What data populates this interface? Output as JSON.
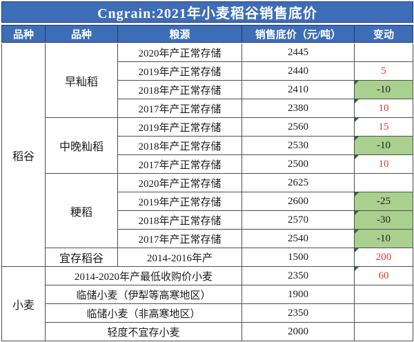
{
  "title": "Cngrain:2021年小麦稻谷销售底价",
  "columns": [
    "品种",
    "品种",
    "粮源",
    "销售底价（元/吨）",
    "变动"
  ],
  "groups": {
    "rice": "稻谷",
    "wheat": "小麦",
    "early_indica": "早籼稻",
    "mid_late_indica": "中晚籼稻",
    "japonica": "粳稻",
    "storable_rice": "宜存稻谷"
  },
  "rows": [
    {
      "source": "2020年产正常存储",
      "price": "2445",
      "change": ""
    },
    {
      "source": "2019年产正常存储",
      "price": "2440",
      "change": "5"
    },
    {
      "source": "2018年产正常存储",
      "price": "2410",
      "change": "-10"
    },
    {
      "source": "2017年产正常存储",
      "price": "2380",
      "change": "10"
    },
    {
      "source": "2019年产正常存储",
      "price": "2560",
      "change": "15"
    },
    {
      "source": "2018年产正常存储",
      "price": "2530",
      "change": "-10"
    },
    {
      "source": "2017年产正常存储",
      "price": "2500",
      "change": "10"
    },
    {
      "source": "2020年产正常存储",
      "price": "2625",
      "change": ""
    },
    {
      "source": "2019年产正常存储",
      "price": "2600",
      "change": "-25"
    },
    {
      "source": "2018年产正常存储",
      "price": "2570",
      "change": "-30"
    },
    {
      "source": "2017年产正常存储",
      "price": "2540",
      "change": "-10"
    },
    {
      "source": "2014-2016年产",
      "price": "1500",
      "change": "200"
    },
    {
      "source": "2014-2020年产最低收购价小麦",
      "price": "2350",
      "change": "60"
    },
    {
      "source": "临储小麦（伊犁等高寒地区）",
      "price": "1900",
      "change": ""
    },
    {
      "source": "临储小麦（非高寒地区）",
      "price": "2350",
      "change": ""
    },
    {
      "source": "轻度不宜存小麦",
      "price": "2000",
      "change": ""
    }
  ],
  "colors": {
    "header_blue": "#3e6db8",
    "border_navy": "#1e3a6e",
    "grid_line": "#4d4d4d",
    "green_bg": "#a9d08e",
    "red_text": "#dd3a30",
    "marker_green": "#1f7244"
  }
}
